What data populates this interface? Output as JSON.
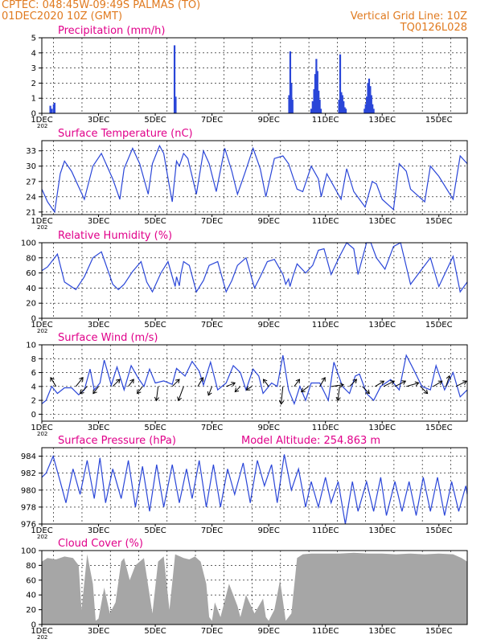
{
  "header": {
    "line1_left": "CPTEC:   048:45W-09:49S   PALMAS (TO)",
    "line2_left": "01DEC2020 10Z (GMT)",
    "line1_right": "Vertical Grid Line: 10Z",
    "line2_right": "TQ0126L028"
  },
  "colors": {
    "header": "#e07a1f",
    "title": "#e0008a",
    "series": "#2a46d8",
    "cloud": "#a6a6a6",
    "frame": "#000000"
  },
  "x_axis": {
    "ticks": [
      {
        "day": 1,
        "label": "1DEC"
      },
      {
        "day": 3,
        "label": "3DEC"
      },
      {
        "day": 5,
        "label": "5DEC"
      },
      {
        "day": 7,
        "label": "7DEC"
      },
      {
        "day": 9,
        "label": "9DEC"
      },
      {
        "day": 11,
        "label": "11DEC"
      },
      {
        "day": 13,
        "label": "13DEC"
      },
      {
        "day": 15,
        "label": "15DEC"
      }
    ],
    "range_days": [
      1,
      16
    ],
    "year_stub": "202"
  },
  "chart_data": [
    {
      "type": "bar",
      "title": "Precipitation (mm/h)",
      "ylim": [
        0,
        5
      ],
      "yticks": [
        0,
        1,
        2,
        3,
        4,
        5
      ],
      "x": [
        1.3,
        1.35,
        1.42,
        1.45,
        5.68,
        5.72,
        9.72,
        9.76,
        9.8,
        9.84,
        10.5,
        10.55,
        10.6,
        10.64,
        10.68,
        10.72,
        10.76,
        10.8,
        10.84,
        11.48,
        11.52,
        11.56,
        11.6,
        11.64,
        11.68,
        11.72,
        12.38,
        12.42,
        12.46,
        12.5,
        12.54,
        12.58,
        12.62,
        12.66,
        12.7
      ],
      "values": [
        0.5,
        0.3,
        0.6,
        0.7,
        4.5,
        1.1,
        1.2,
        4.1,
        2.0,
        0.9,
        0.3,
        0.8,
        1.6,
        2.6,
        3.6,
        2.8,
        1.5,
        0.9,
        0.3,
        0.9,
        3.9,
        1.4,
        1.2,
        0.8,
        0.4,
        0.3,
        0.3,
        0.6,
        1.1,
        2.0,
        2.3,
        1.8,
        1.2,
        0.6,
        0.3
      ]
    },
    {
      "type": "line",
      "title": "Surface Temperature (nC)",
      "ylim": [
        20.5,
        35
      ],
      "yticks": [
        21,
        24,
        27,
        30,
        33
      ],
      "x": [
        1.0,
        1.2,
        1.45,
        1.65,
        1.8,
        2.05,
        2.5,
        2.8,
        3.1,
        3.5,
        3.75,
        3.9,
        4.2,
        4.45,
        4.75,
        4.9,
        5.15,
        5.3,
        5.5,
        5.6,
        5.75,
        5.85,
        6.0,
        6.15,
        6.45,
        6.7,
        6.9,
        7.15,
        7.45,
        7.7,
        7.9,
        8.15,
        8.45,
        8.7,
        8.9,
        9.2,
        9.5,
        9.7,
        10.0,
        10.2,
        10.5,
        10.75,
        10.85,
        11.05,
        11.4,
        11.55,
        11.75,
        12.0,
        12.4,
        12.65,
        12.8,
        13.0,
        13.4,
        13.6,
        13.85,
        14.0,
        14.5,
        14.7,
        15.0,
        15.5,
        15.75,
        16.0
      ],
      "values": [
        25.5,
        23.0,
        21.0,
        28.5,
        31.0,
        29.0,
        23.5,
        30.0,
        32.5,
        27.5,
        23.5,
        29.5,
        33.5,
        30.5,
        24.5,
        30.5,
        34.0,
        32.5,
        26.0,
        23.0,
        31.0,
        30.0,
        32.5,
        31.5,
        24.5,
        33.0,
        30.5,
        25.0,
        33.5,
        29.0,
        24.5,
        28.5,
        33.5,
        29.5,
        24.0,
        31.5,
        32.0,
        30.5,
        25.5,
        25.0,
        30.0,
        27.5,
        24.0,
        28.5,
        25.0,
        23.5,
        29.5,
        25.0,
        22.0,
        27.0,
        26.5,
        23.5,
        21.5,
        30.5,
        29.0,
        25.5,
        23.0,
        30.0,
        28.0,
        23.5,
        32.0,
        30.5
      ]
    },
    {
      "type": "line",
      "title": "Relative Humidity (%)",
      "ylim": [
        0,
        100
      ],
      "yticks": [
        0,
        20,
        40,
        60,
        80,
        100
      ],
      "x": [
        1.0,
        1.2,
        1.45,
        1.55,
        1.8,
        2.2,
        2.5,
        2.8,
        3.1,
        3.5,
        3.7,
        3.9,
        4.2,
        4.5,
        4.7,
        4.9,
        5.2,
        5.45,
        5.6,
        5.7,
        5.75,
        5.85,
        5.9,
        6.0,
        6.2,
        6.45,
        6.7,
        6.9,
        7.2,
        7.5,
        7.7,
        7.9,
        8.2,
        8.5,
        8.7,
        8.95,
        9.2,
        9.5,
        9.6,
        9.7,
        9.75,
        9.85,
        10.0,
        10.3,
        10.55,
        10.75,
        10.95,
        11.2,
        11.5,
        11.75,
        12.0,
        12.15,
        12.45,
        12.6,
        12.8,
        13.1,
        13.4,
        13.65,
        14.0,
        14.3,
        14.7,
        15.0,
        15.5,
        15.75,
        16.0
      ],
      "values": [
        63.0,
        68.0,
        80.0,
        85.0,
        48.0,
        38.0,
        55.0,
        80.0,
        88.0,
        45.0,
        38.0,
        45.0,
        62.0,
        75.0,
        48.0,
        35.0,
        60.0,
        75.0,
        55.0,
        42.0,
        55.0,
        43.0,
        58.0,
        75.0,
        70.0,
        35.0,
        50.0,
        70.0,
        75.0,
        35.0,
        50.0,
        70.0,
        80.0,
        40.0,
        55.0,
        75.0,
        78.0,
        58.0,
        45.0,
        52.0,
        42.0,
        55.0,
        72.0,
        60.0,
        70.0,
        90.0,
        92.0,
        58.0,
        82.0,
        100.0,
        92.0,
        58.0,
        100.0,
        100.0,
        80.0,
        65.0,
        95.0,
        100.0,
        45.0,
        60.0,
        80.0,
        42.0,
        82.0,
        35.0,
        48.0
      ]
    },
    {
      "type": "line",
      "title": "Surface Wind (m/s)",
      "ylim": [
        -1,
        10
      ],
      "yticks": [
        0,
        2,
        4,
        6,
        8,
        10
      ],
      "x": [
        1.0,
        1.15,
        1.35,
        1.55,
        1.8,
        2.05,
        2.3,
        2.5,
        2.7,
        2.85,
        3.05,
        3.2,
        3.45,
        3.65,
        3.9,
        4.15,
        4.4,
        4.6,
        4.8,
        5.0,
        5.3,
        5.6,
        5.75,
        6.05,
        6.3,
        6.55,
        6.7,
        6.95,
        7.2,
        7.5,
        7.75,
        8.0,
        8.2,
        8.45,
        8.65,
        8.8,
        9.1,
        9.3,
        9.5,
        9.7,
        9.9,
        10.1,
        10.3,
        10.5,
        10.8,
        11.1,
        11.3,
        11.6,
        11.85,
        12.05,
        12.2,
        12.45,
        12.7,
        12.95,
        13.3,
        13.6,
        13.85,
        14.1,
        14.4,
        14.7,
        14.9,
        15.2,
        15.5,
        15.75,
        16.0
      ],
      "values": [
        1.5,
        2.0,
        4.0,
        3.0,
        3.8,
        3.8,
        2.8,
        3.5,
        6.5,
        3.5,
        4.5,
        7.8,
        4.2,
        6.8,
        3.5,
        7.0,
        5.2,
        4.0,
        6.5,
        4.5,
        4.8,
        4.3,
        6.6,
        5.5,
        7.6,
        6.2,
        4.2,
        7.5,
        3.5,
        4.5,
        7.0,
        6.0,
        3.5,
        6.5,
        5.5,
        3.0,
        4.5,
        4.0,
        8.5,
        3.5,
        1.5,
        4.0,
        2.0,
        4.5,
        4.5,
        2.0,
        7.5,
        4.0,
        3.0,
        5.5,
        5.8,
        3.0,
        2.0,
        4.0,
        5.0,
        3.5,
        8.5,
        6.5,
        4.0,
        3.5,
        7.0,
        3.5,
        6.0,
        2.5,
        3.5
      ],
      "vectors": [
        {
          "day": 1.5,
          "dx": -0.3,
          "dy": 0.5
        },
        {
          "day": 2.2,
          "dx": 0.4,
          "dy": 0.5
        },
        {
          "day": 2.6,
          "dx": -0.4,
          "dy": -0.4
        },
        {
          "day": 3.0,
          "dx": -0.3,
          "dy": -0.4
        },
        {
          "day": 3.5,
          "dx": 0.4,
          "dy": 0.4
        },
        {
          "day": 4.05,
          "dx": 0.3,
          "dy": 0.4
        },
        {
          "day": 4.55,
          "dx": -0.3,
          "dy": -0.4
        },
        {
          "day": 5.1,
          "dx": -0.1,
          "dy": -0.8
        },
        {
          "day": 5.6,
          "dx": 0.4,
          "dy": 0.4
        },
        {
          "day": 6.0,
          "dx": -0.3,
          "dy": -0.8
        },
        {
          "day": 6.5,
          "dx": 0.3,
          "dy": 0.5
        },
        {
          "day": 7.0,
          "dx": -0.2,
          "dy": -0.5
        },
        {
          "day": 7.5,
          "dx": 0.5,
          "dy": 0.2
        },
        {
          "day": 8.0,
          "dx": -0.3,
          "dy": -0.3
        },
        {
          "day": 8.4,
          "dx": -0.3,
          "dy": -0.2
        },
        {
          "day": 9.0,
          "dx": -0.3,
          "dy": 0.4
        },
        {
          "day": 9.5,
          "dx": -0.1,
          "dy": -1.0
        },
        {
          "day": 9.9,
          "dx": 0.3,
          "dy": 0.4
        },
        {
          "day": 10.4,
          "dx": -0.4,
          "dy": -0.3
        },
        {
          "day": 10.8,
          "dx": 0.3,
          "dy": 0.5
        },
        {
          "day": 11.2,
          "dx": 0.7,
          "dy": 0.1
        },
        {
          "day": 11.5,
          "dx": -0.1,
          "dy": -0.8
        },
        {
          "day": 11.85,
          "dx": 0.4,
          "dy": 0.4
        },
        {
          "day": 12.3,
          "dx": 0.4,
          "dy": -0.4
        },
        {
          "day": 12.75,
          "dx": 0.5,
          "dy": 0.3
        },
        {
          "day": 13.05,
          "dx": 0.6,
          "dy": 0.3
        },
        {
          "day": 13.45,
          "dx": 0.6,
          "dy": 0.3
        },
        {
          "day": 13.85,
          "dx": 0.7,
          "dy": 0.2
        },
        {
          "day": 14.35,
          "dx": 0.4,
          "dy": -0.4
        },
        {
          "day": 14.8,
          "dx": 0.5,
          "dy": 0.3
        },
        {
          "day": 15.25,
          "dx": 0.2,
          "dy": 0.6
        },
        {
          "day": 15.6,
          "dx": 0.6,
          "dy": 0.3
        }
      ]
    },
    {
      "type": "line",
      "title": "Surface Pressure (hPa)",
      "annotation": "Model Altitude: 254.863 m",
      "ylim": [
        976,
        985
      ],
      "yticks": [
        976,
        978,
        980,
        982,
        984
      ],
      "x": [
        1.0,
        1.15,
        1.4,
        1.65,
        1.85,
        2.1,
        2.35,
        2.6,
        2.85,
        3.05,
        3.25,
        3.5,
        3.8,
        4.05,
        4.3,
        4.55,
        4.8,
        5.05,
        5.3,
        5.6,
        5.85,
        6.1,
        6.3,
        6.55,
        6.8,
        7.05,
        7.3,
        7.55,
        7.8,
        8.1,
        8.35,
        8.6,
        8.85,
        9.1,
        9.3,
        9.55,
        9.8,
        10.05,
        10.3,
        10.5,
        10.75,
        11.0,
        11.2,
        11.45,
        11.7,
        11.95,
        12.15,
        12.45,
        12.7,
        12.95,
        13.15,
        13.45,
        13.7,
        13.95,
        14.2,
        14.45,
        14.7,
        14.95,
        15.2,
        15.45,
        15.7,
        15.95,
        16.0
      ],
      "values": [
        981.5,
        982.0,
        984.0,
        981.0,
        978.5,
        982.5,
        979.5,
        983.5,
        979.0,
        983.8,
        978.5,
        982.5,
        979.0,
        983.5,
        978.0,
        982.8,
        977.5,
        983.0,
        978.0,
        983.0,
        978.5,
        982.5,
        979.0,
        983.5,
        978.0,
        983.0,
        978.0,
        982.5,
        979.5,
        983.2,
        978.5,
        983.5,
        980.5,
        983.0,
        978.5,
        984.2,
        980.0,
        982.5,
        978.0,
        981.0,
        978.0,
        981.5,
        978.5,
        981.0,
        976.0,
        981.0,
        977.5,
        981.0,
        977.5,
        981.5,
        977.0,
        981.0,
        977.5,
        981.0,
        977.0,
        981.5,
        977.5,
        981.5,
        977.0,
        981.0,
        977.5,
        980.5,
        979.5
      ]
    },
    {
      "type": "area",
      "title": "Cloud Cover (%)",
      "ylim": [
        0,
        100
      ],
      "yticks": [
        0,
        20,
        40,
        60,
        80,
        100
      ],
      "x": [
        1.0,
        1.2,
        1.5,
        1.8,
        2.1,
        2.3,
        2.4,
        2.6,
        2.8,
        2.9,
        3.0,
        3.2,
        3.4,
        3.6,
        3.8,
        3.9,
        4.1,
        4.3,
        4.6,
        4.9,
        5.1,
        5.3,
        5.5,
        5.7,
        6.0,
        6.2,
        6.4,
        6.6,
        6.8,
        6.9,
        7.0,
        7.1,
        7.3,
        7.6,
        7.9,
        8.0,
        8.2,
        8.5,
        8.8,
        8.9,
        9.0,
        9.2,
        9.4,
        9.6,
        9.8,
        10.0,
        10.2,
        10.5,
        11.0,
        11.5,
        12.0,
        12.5,
        13.0,
        13.5,
        14.0,
        14.5,
        15.0,
        15.5,
        15.8,
        16.0
      ],
      "values": [
        85.0,
        90.0,
        88.0,
        92.0,
        90.0,
        80.0,
        20.0,
        95.0,
        55.0,
        5.0,
        8.0,
        50.0,
        15.0,
        30.0,
        85.0,
        90.0,
        60.0,
        80.0,
        90.0,
        15.0,
        85.0,
        92.0,
        20.0,
        95.0,
        90.0,
        88.0,
        92.0,
        85.0,
        55.0,
        10.0,
        5.0,
        30.0,
        10.0,
        55.0,
        25.0,
        10.0,
        40.0,
        15.0,
        35.0,
        10.0,
        5.0,
        20.0,
        60.0,
        5.0,
        15.0,
        90.0,
        95.0,
        96.0,
        96.0,
        96.0,
        97.0,
        96.0,
        96.0,
        95.0,
        96.0,
        95.0,
        96.0,
        95.0,
        90.0,
        85.0
      ]
    }
  ]
}
